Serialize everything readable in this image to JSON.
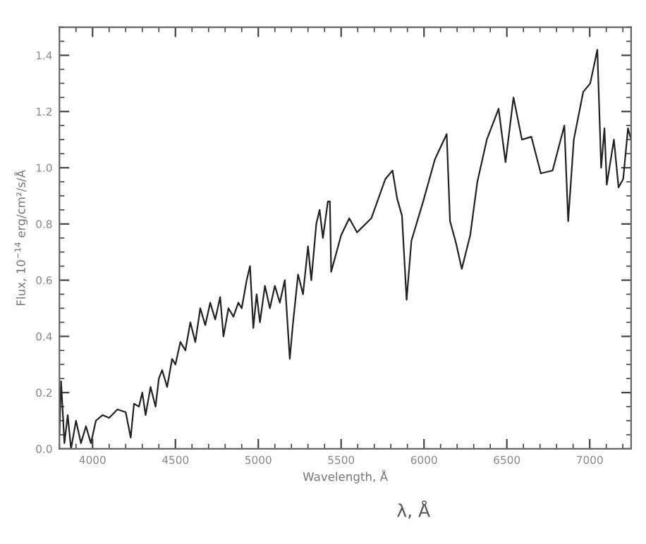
{
  "chart_data": {
    "type": "line",
    "xlabel": "Wavelength, Å",
    "ylabel": "Flux, 10$^{−14}$ erg/cm²/s/Å",
    "annotations": [
      "λ, Å"
    ],
    "xlim": [
      3800,
      7250
    ],
    "xticks": [
      4000,
      4500,
      5000,
      5500,
      6000,
      6500,
      7000
    ],
    "ylim": [
      0,
      1.5
    ],
    "yticks": [
      {
        "value": 0,
        "label": "0.0"
      },
      0.2,
      0.4,
      0.6,
      0.8,
      {
        "value": 1,
        "label": "1.0"
      },
      1.2,
      1.4
    ],
    "grid": false,
    "legend": false,
    "marker": "none",
    "line_style": "solid",
    "series": [
      {
        "color": "#222222",
        "x": [
          3800,
          3810,
          3830,
          3850,
          3870,
          3900,
          3930,
          3960,
          3990,
          4020,
          4060,
          4100,
          4150,
          4200,
          4230,
          4250,
          4280,
          4300,
          4320,
          4350,
          4380,
          4400,
          4420,
          4450,
          4480,
          4500,
          4530,
          4560,
          4590,
          4620,
          4650,
          4680,
          4710,
          4740,
          4770,
          4790,
          4820,
          4850,
          4880,
          4900,
          4930,
          4950,
          4970,
          4990,
          5010,
          5040,
          5070,
          5100,
          5130,
          5160,
          5190,
          5210,
          5240,
          5270,
          5300,
          5320,
          5350,
          5370,
          5390,
          5420,
          5432,
          5440,
          5500,
          5549,
          5596,
          5682,
          5767,
          5810,
          5838,
          5867,
          5895,
          5924,
          5995,
          6066,
          6137,
          6157,
          6194,
          6228,
          6279,
          6322,
          6379,
          6450,
          6492,
          6540,
          6591,
          6648,
          6705,
          6776,
          6847,
          6870,
          6904,
          6961,
          7003,
          7046,
          7069,
          7089,
          7103,
          7146,
          7174,
          7202,
          7231,
          7250
        ],
        "values": [
          0.05,
          0.24,
          0.02,
          0.12,
          0.0,
          0.1,
          0.02,
          0.08,
          0.02,
          0.1,
          0.12,
          0.11,
          0.14,
          0.13,
          0.04,
          0.16,
          0.15,
          0.2,
          0.12,
          0.22,
          0.15,
          0.25,
          0.28,
          0.22,
          0.32,
          0.3,
          0.38,
          0.35,
          0.45,
          0.38,
          0.5,
          0.44,
          0.52,
          0.46,
          0.54,
          0.4,
          0.5,
          0.47,
          0.52,
          0.5,
          0.6,
          0.65,
          0.43,
          0.55,
          0.45,
          0.58,
          0.5,
          0.58,
          0.52,
          0.6,
          0.32,
          0.45,
          0.62,
          0.55,
          0.72,
          0.6,
          0.8,
          0.85,
          0.75,
          0.88,
          0.88,
          0.63,
          0.76,
          0.82,
          0.77,
          0.82,
          0.96,
          0.99,
          0.89,
          0.83,
          0.53,
          0.74,
          0.88,
          1.03,
          1.12,
          0.81,
          0.73,
          0.64,
          0.76,
          0.95,
          1.1,
          1.21,
          1.02,
          1.25,
          1.1,
          1.11,
          0.98,
          0.99,
          1.15,
          0.81,
          1.1,
          1.27,
          1.3,
          1.42,
          1.0,
          1.14,
          0.94,
          1.1,
          0.93,
          0.96,
          1.14,
          1.1
        ]
      }
    ]
  }
}
